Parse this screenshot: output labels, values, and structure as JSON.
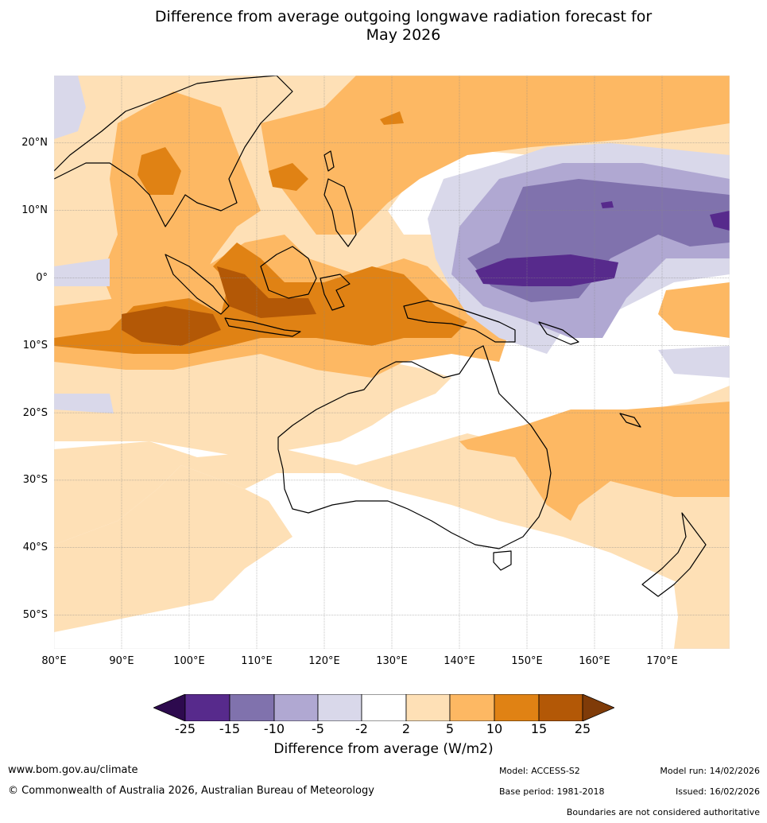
{
  "title": {
    "line1": "Difference from average outgoing longwave radiation forecast for",
    "line2": "May 2026"
  },
  "axes": {
    "lat_labels": [
      "20°N",
      "10°N",
      "0°",
      "10°S",
      "20°S",
      "30°S",
      "40°S",
      "50°S"
    ],
    "lon_labels": [
      "80°E",
      "90°E",
      "100°E",
      "110°E",
      "120°E",
      "130°E",
      "140°E",
      "150°E",
      "160°E",
      "170°E"
    ],
    "lon_range": [
      80,
      180
    ],
    "lat_range": [
      -55,
      30
    ]
  },
  "legend": {
    "ticks": [
      "-25",
      "-15",
      "-10",
      "-5",
      "-2",
      "2",
      "5",
      "10",
      "15",
      "25"
    ],
    "colors": [
      "#2d0a4e",
      "#572a8c",
      "#8072ad",
      "#b0a8d2",
      "#d9d8ea",
      "#ffffff",
      "#fee0b6",
      "#fdb863",
      "#e08214",
      "#b35806",
      "#7f3b08"
    ],
    "title": "Difference from average (W/m2)"
  },
  "footer": {
    "website": "www.bom.gov.au/climate",
    "copyright": "© Commonwealth of Australia 2026, Australian Bureau of Meteorology",
    "model": "Model: ACCESS-S2",
    "base_period": "Base period: 1981-2018",
    "model_run": "Model run: 14/02/2026",
    "issued": "Issued: 16/02/2026",
    "disclaimer": "Boundaries are not considered authoritative"
  }
}
